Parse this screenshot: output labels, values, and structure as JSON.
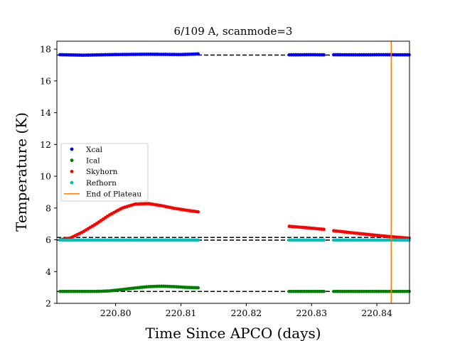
{
  "chart_data": {
    "type": "scatter",
    "title": "6/109 A, scanmode=3",
    "xlabel": "Time Since APCO (days)",
    "ylabel": "Temperature (K)",
    "xlim": [
      220.791,
      220.845
    ],
    "ylim": [
      2,
      18.5
    ],
    "xticks": [
      220.8,
      220.81,
      220.82,
      220.83,
      220.84
    ],
    "xtick_labels": [
      "220.80",
      "220.81",
      "220.82",
      "220.83",
      "220.84"
    ],
    "yticks": [
      2,
      4,
      6,
      8,
      10,
      12,
      14,
      16,
      18
    ],
    "ytick_labels": [
      "2",
      "4",
      "6",
      "8",
      "10",
      "12",
      "14",
      "16",
      "18"
    ],
    "grid": false,
    "legend_position": "center-left",
    "segments": [
      {
        "x_start": 220.7915,
        "x_end": 220.8128
      },
      {
        "x_start": 220.8266,
        "x_end": 220.8321
      },
      {
        "x_start": 220.8334,
        "x_end": 220.845
      }
    ],
    "series": [
      {
        "name": "Xcal",
        "kind": "points",
        "color": "#0000ff",
        "x": [
          220.7915,
          220.795,
          220.8,
          220.805,
          220.81,
          220.8128,
          220.8266,
          220.83,
          220.8321,
          220.8334,
          220.837,
          220.841,
          220.845
        ],
        "y": [
          17.65,
          17.62,
          17.66,
          17.68,
          17.66,
          17.7,
          17.64,
          17.65,
          17.64,
          17.65,
          17.64,
          17.65,
          17.64
        ]
      },
      {
        "name": "Ical",
        "kind": "points",
        "color": "#008000",
        "x": [
          220.7915,
          220.797,
          220.799,
          220.801,
          220.803,
          220.805,
          220.807,
          220.809,
          220.811,
          220.8128,
          220.8266,
          220.8321,
          220.8334,
          220.839,
          220.845
        ],
        "y": [
          2.75,
          2.75,
          2.78,
          2.87,
          2.97,
          3.05,
          3.08,
          3.05,
          3.0,
          2.98,
          2.75,
          2.75,
          2.75,
          2.75,
          2.75
        ]
      },
      {
        "name": "Skyhorn",
        "kind": "points",
        "color": "#ff0000",
        "x": [
          220.7915,
          220.793,
          220.795,
          220.797,
          220.799,
          220.801,
          220.803,
          220.805,
          220.807,
          220.809,
          220.811,
          220.8128,
          220.8266,
          220.8295,
          220.8321,
          220.8334,
          220.836,
          220.839,
          220.842,
          220.845
        ],
        "y": [
          6.0,
          6.1,
          6.5,
          7.0,
          7.55,
          8.0,
          8.25,
          8.28,
          8.15,
          7.98,
          7.85,
          7.75,
          6.85,
          6.75,
          6.65,
          6.57,
          6.45,
          6.32,
          6.2,
          6.1
        ]
      },
      {
        "name": "Refhorn",
        "kind": "points",
        "color": "#00bfbf",
        "x": [
          220.7915,
          220.8128,
          220.8266,
          220.8321,
          220.8334,
          220.845
        ],
        "y": [
          5.98,
          5.98,
          5.98,
          5.98,
          5.98,
          5.98
        ]
      },
      {
        "name": "End of Plateau",
        "kind": "vline",
        "color": "#ff7f0e",
        "x": 220.8422
      }
    ],
    "reference_lines": [
      {
        "y": 17.63,
        "style": "dashed",
        "color": "#000000"
      },
      {
        "y": 6.15,
        "style": "dashed",
        "color": "#000000"
      },
      {
        "y": 5.98,
        "style": "dashed",
        "color": "#000000"
      },
      {
        "y": 2.75,
        "style": "dashed",
        "color": "#000000"
      }
    ]
  }
}
